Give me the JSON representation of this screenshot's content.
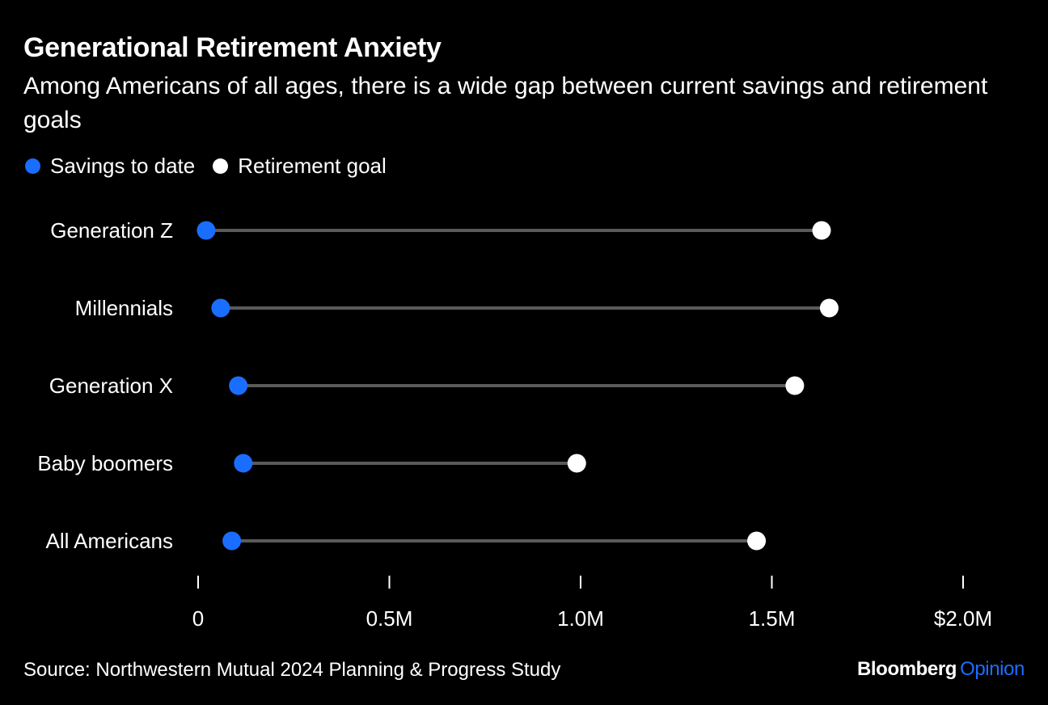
{
  "title": "Generational Retirement Anxiety",
  "subtitle": "Among Americans of all ages, there is a wide gap between current savings and retirement goals",
  "legend": [
    {
      "label": "Savings to date",
      "color": "#1a6eff"
    },
    {
      "label": "Retirement goal",
      "color": "#ffffff"
    }
  ],
  "source": "Source: Northwestern Mutual 2024 Planning & Progress Study",
  "brand": {
    "name": "Bloomberg",
    "section": "Opinion",
    "section_color": "#1a6eff"
  },
  "chart_data": {
    "type": "dumbbell",
    "categories": [
      "Generation Z",
      "Millennials",
      "Generation X",
      "Baby boomers",
      "All Americans"
    ],
    "series": [
      {
        "name": "Savings to date",
        "values": [
          21000,
          59000,
          105000,
          118000,
          88000
        ]
      },
      {
        "name": "Retirement goal",
        "values": [
          1630000,
          1650000,
          1560000,
          990000,
          1460000
        ]
      }
    ],
    "xlim": [
      0,
      2000000
    ],
    "ticks": [
      0,
      500000,
      1000000,
      1500000,
      2000000
    ],
    "tick_labels": [
      "0",
      "0.5M",
      "1.0M",
      "1.5M",
      "$2.0M"
    ],
    "grid": false,
    "legend_position": "top-left"
  }
}
